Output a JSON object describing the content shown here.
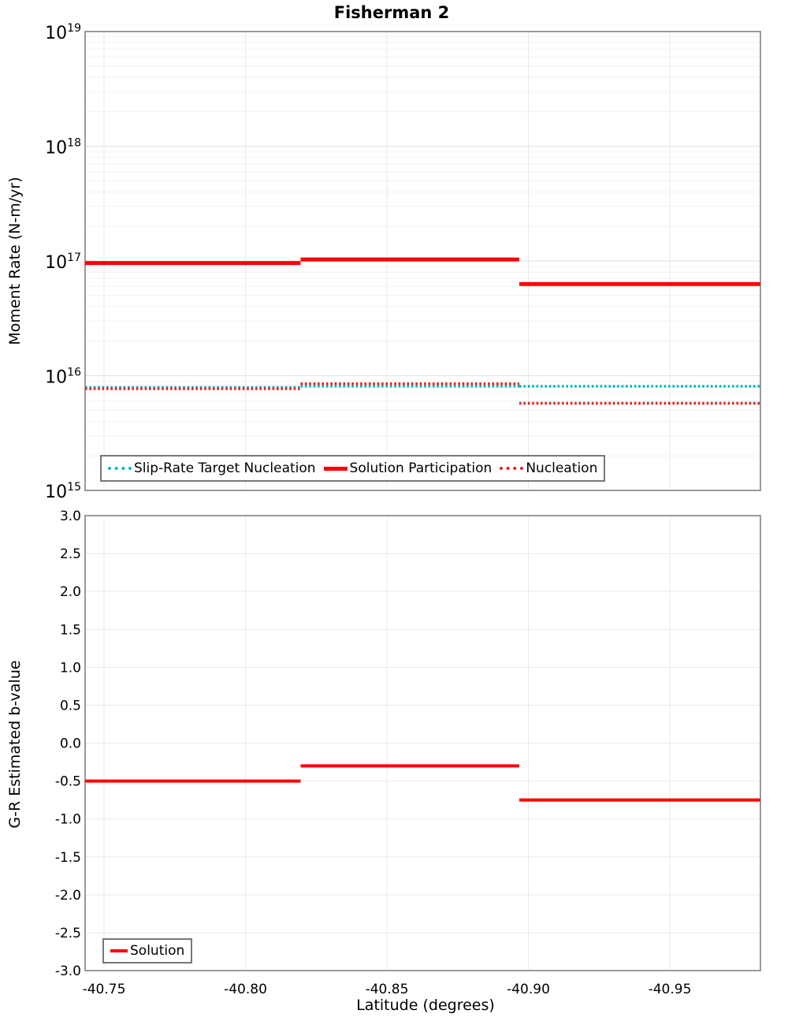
{
  "chart_data": [
    {
      "type": "line",
      "subtype": "step-horizontal-segments",
      "title": "Fisherman 2",
      "ylabel": "Moment Rate (N-m/yr)",
      "yscale": "log",
      "ylim": [
        1000000000000000.0,
        1e+19
      ],
      "y_tick_exponents": [
        19,
        18,
        17,
        16,
        15
      ],
      "grid": true,
      "legend_position": "bottom-inside",
      "x_edges": [
        -40.743,
        -40.8195,
        -40.8968,
        -40.982
      ],
      "series": [
        {
          "name": "Slip-Rate Target Nucleation",
          "dash": "dot",
          "color": "#00bdbd",
          "values": [
            7900000000000000.0,
            8100000000000000.0,
            8100000000000000.0
          ]
        },
        {
          "name": "Solution Participation",
          "dash": "solid",
          "color": "#ff0000",
          "values": [
            9.6e+16,
            1.03e+17,
            6.3e+16
          ]
        },
        {
          "name": "Nucleation",
          "dash": "dot",
          "color": "#e82020",
          "values": [
            7700000000000000.0,
            8500000000000000.0,
            5750000000000000.0
          ]
        }
      ]
    },
    {
      "type": "line",
      "subtype": "step-horizontal-segments",
      "ylabel": "G-R Estimated b-value",
      "xlabel": "Latitude (degrees)",
      "yscale": "linear",
      "ylim": [
        -3.0,
        3.0
      ],
      "y_ticks": [
        "3.0",
        "2.5",
        "2.0",
        "1.5",
        "1.0",
        "0.5",
        "0.0",
        "-0.5",
        "-1.0",
        "-1.5",
        "-2.0",
        "-2.5",
        "-3.0"
      ],
      "x_ticks": [
        "-40.75",
        "-40.80",
        "-40.85",
        "-40.90",
        "-40.95"
      ],
      "x_axis_reversed": true,
      "grid": true,
      "legend_position": "bottom-left-inside",
      "x_edges": [
        -40.743,
        -40.8195,
        -40.8968,
        -40.982
      ],
      "series": [
        {
          "name": "Solution",
          "dash": "solid",
          "color": "#ff0000",
          "values": [
            -0.5,
            -0.3,
            -0.75
          ]
        }
      ]
    }
  ]
}
